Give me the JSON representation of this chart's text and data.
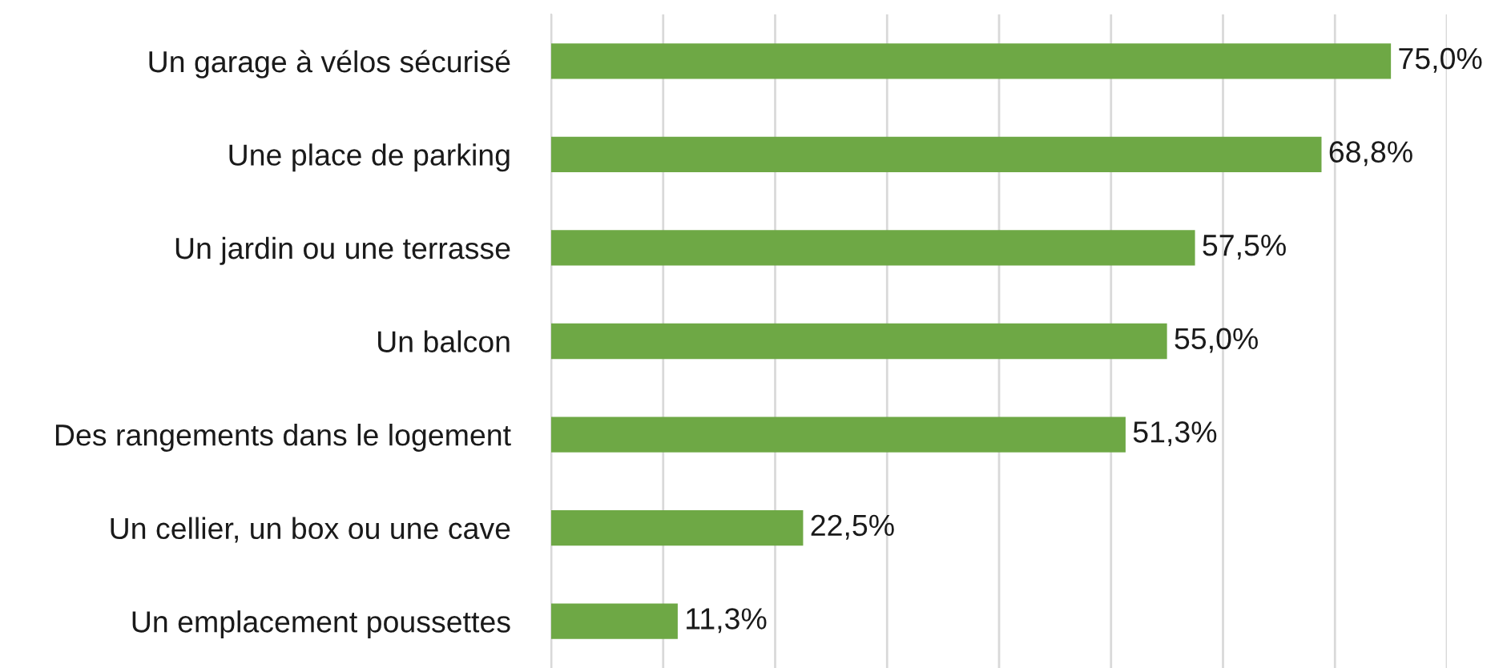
{
  "chart_data": {
    "type": "bar",
    "orientation": "horizontal",
    "categories": [
      "Un garage à vélos sécurisé",
      "Une place de parking",
      "Un jardin ou une terrasse",
      "Un balcon",
      "Des rangements dans le logement",
      "Un cellier, un box ou une cave",
      "Un emplacement poussettes"
    ],
    "values": [
      75.0,
      68.8,
      57.5,
      55.0,
      51.3,
      22.5,
      11.3
    ],
    "value_labels": [
      "75,0%",
      "68,8%",
      "57,5%",
      "55,0%",
      "51,3%",
      "22,5%",
      "11,3%"
    ],
    "color": "#6ea845",
    "xlim": [
      0,
      80
    ],
    "xticks": [
      {
        "value": 0,
        "label": null
      },
      {
        "value": 10,
        "label": null
      },
      {
        "value": 20,
        "label": null
      },
      {
        "value": 30,
        "label": null
      },
      {
        "value": 40,
        "label": null
      },
      {
        "value": 50,
        "label": null
      },
      {
        "value": 60,
        "label": null
      },
      {
        "value": 70,
        "label": null
      },
      {
        "value": 80,
        "label": null
      }
    ],
    "grid": "x",
    "tick_labels": "y",
    "legend": false
  }
}
